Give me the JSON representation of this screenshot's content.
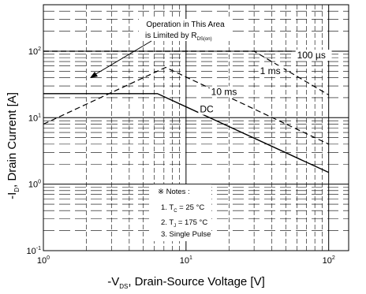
{
  "chart_data": {
    "type": "line",
    "x_scale": "log",
    "y_scale": "log",
    "xlim": [
      1,
      100
    ],
    "ylim": [
      0.1,
      500
    ],
    "grid": true,
    "xticks": [
      {
        "value": 1,
        "base": "10",
        "exp": "0"
      },
      {
        "value": 10,
        "base": "10",
        "exp": "1"
      },
      {
        "value": 100,
        "base": "10",
        "exp": "2"
      }
    ],
    "yticks": [
      {
        "value": 0.1,
        "base": "10",
        "exp": "-1"
      },
      {
        "value": 1,
        "base": "10",
        "exp": "0"
      },
      {
        "value": 10,
        "base": "10",
        "exp": "1"
      },
      {
        "value": 100,
        "base": "10",
        "exp": "2"
      }
    ],
    "xlabel": {
      "prefix": "-V",
      "sub": "DS",
      "suffix": ", Drain-Source Voltage [V]"
    },
    "ylabel": {
      "prefix": "-I",
      "sub": "D",
      "suffix": ", Drain Current [A]"
    },
    "series": [
      {
        "name": "DC",
        "style": "solid",
        "points": [
          [
            1,
            23
          ],
          [
            6.3,
            23
          ],
          [
            100,
            1.5
          ]
        ]
      },
      {
        "name": "10 ms",
        "style": "dashed",
        "points": [
          [
            1,
            8
          ],
          [
            7.2,
            57
          ],
          [
            100,
            4
          ]
        ]
      },
      {
        "name": "1 ms",
        "style": "dashed",
        "points": [
          [
            1,
            100
          ],
          [
            30,
            100
          ],
          [
            100,
            22
          ]
        ]
      },
      {
        "name": "100 µs",
        "style": "dashed",
        "points": [
          [
            1,
            100
          ],
          [
            100,
            100
          ]
        ]
      }
    ],
    "annotations": {
      "region": {
        "line1": "Operation in This Area",
        "line2": "is Limited by R",
        "sub": "DS(on)"
      },
      "labels": [
        {
          "text": "100 µs",
          "x": 60,
          "y": 78
        },
        {
          "text": "1 ms",
          "x": 33,
          "y": 45
        },
        {
          "text": "10 ms",
          "x": 15,
          "y": 22
        },
        {
          "text": "DC",
          "x": 12.5,
          "y": 12
        }
      ],
      "notes": {
        "header": "※ Notes :",
        "n1": {
          "pre": "1. T",
          "sub": "C",
          "post": " = 25 °C"
        },
        "n2": {
          "pre": "2. T",
          "sub": "J",
          "post": " = 175 °C"
        },
        "n3": "3. Single Pulse"
      }
    }
  }
}
